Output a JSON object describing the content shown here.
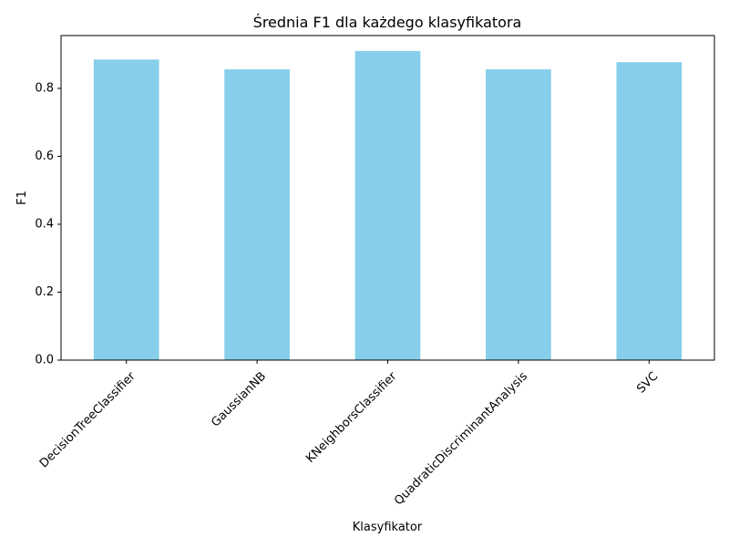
{
  "chart_data": {
    "type": "bar",
    "title": "Średnia F1 dla każdego klasyfikatora",
    "xlabel": "Klasyfikator",
    "ylabel": "F1",
    "categories": [
      "DecisionTreeClassifier",
      "GaussianNB",
      "KNeighborsClassifier",
      "QuadraticDiscriminantAnalysis",
      "SVC"
    ],
    "values": [
      0.885,
      0.856,
      0.91,
      0.856,
      0.877
    ],
    "ylim": [
      0,
      0.9555
    ],
    "yticks": [
      0.0,
      0.2,
      0.4,
      0.6,
      0.8
    ],
    "ytick_labels": [
      "0.0",
      "0.2",
      "0.4",
      "0.6",
      "0.8"
    ],
    "bar_color": "#87ceeb",
    "xtick_rotation_deg": 45,
    "grid": false,
    "legend": "none"
  }
}
